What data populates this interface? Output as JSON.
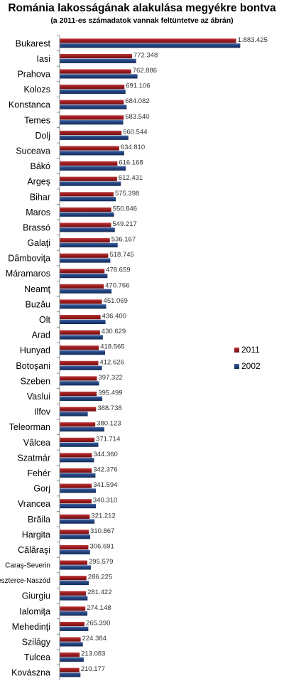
{
  "chart_data": {
    "type": "bar",
    "orientation": "horizontal",
    "title": "Románia lakosságának alakulása megyékre bontva",
    "subtitle": "(a 2011-es számadatok vannak feltüntetve az ábrán)",
    "categories": [
      "Bukarest",
      "Iasi",
      "Prahova",
      "Kolozs",
      "Konstanca",
      "Temes",
      "Dolj",
      "Suceava",
      "Bákó",
      "Argeş",
      "Bihar",
      "Maros",
      "Brassó",
      "Galaţi",
      "Dâmboviţa",
      "Máramaros",
      "Neamţ",
      "Buzău",
      "Olt",
      "Arad",
      "Hunyad",
      "Botoşani",
      "Szeben",
      "Vaslui",
      "Ilfov",
      "Teleorman",
      "Vâlcea",
      "Szatmár",
      "Fehér",
      "Gorj",
      "Vrancea",
      "Brăila",
      "Hargita",
      "Călăraşi",
      "Caraş-Severin",
      "Beszterce-Naszód",
      "Giurgiu",
      "Ialomiţa",
      "Mehedinţi",
      "Szilágy",
      "Tulcea",
      "Kovászna"
    ],
    "data_labels": [
      "1.883.425",
      "772.348",
      "762.886",
      "691.106",
      "684.082",
      "683.540",
      "660.544",
      "634.810",
      "616.168",
      "612.431",
      "575.398",
      "550.846",
      "549.217",
      "536.167",
      "518.745",
      "478.659",
      "470.766",
      "451.069",
      "436.400",
      "430.629",
      "418.565",
      "412.626",
      "397.322",
      "395.499",
      "388.738",
      "380.123",
      "371.714",
      "344.360",
      "342.376",
      "341.594",
      "340.310",
      "321.212",
      "310.867",
      "306.691",
      "295.579",
      "286.225",
      "281.422",
      "274.148",
      "265.390",
      "224.384",
      "213.083",
      "210.177"
    ],
    "series": [
      {
        "name": "2011",
        "color": "#9b1c1f",
        "values": [
          1883425,
          772348,
          762886,
          691106,
          684082,
          683540,
          660544,
          634810,
          616168,
          612431,
          575398,
          550846,
          549217,
          536167,
          518745,
          478659,
          470766,
          451069,
          436400,
          430629,
          418565,
          412626,
          397322,
          395499,
          388738,
          380123,
          371714,
          344360,
          342376,
          341594,
          340310,
          321212,
          310867,
          306691,
          295579,
          286225,
          281422,
          274148,
          265390,
          224384,
          213083,
          210177
        ]
      },
      {
        "name": "2002",
        "color": "#22437e",
        "values": [
          1927000,
          816000,
          830000,
          703000,
          715000,
          678000,
          734000,
          689000,
          706000,
          653000,
          600000,
          580000,
          589000,
          619000,
          541000,
          510000,
          554000,
          496000,
          489000,
          461000,
          485000,
          452000,
          421000,
          455000,
          300000,
          477000,
          413000,
          367000,
          382000,
          387000,
          387000,
          373000,
          326000,
          324000,
          333000,
          311000,
          298000,
          296000,
          306000,
          248000,
          257000,
          222000
        ]
      }
    ],
    "xlim": [
      0,
      2000000
    ],
    "legend_position": "right",
    "grid": false
  }
}
